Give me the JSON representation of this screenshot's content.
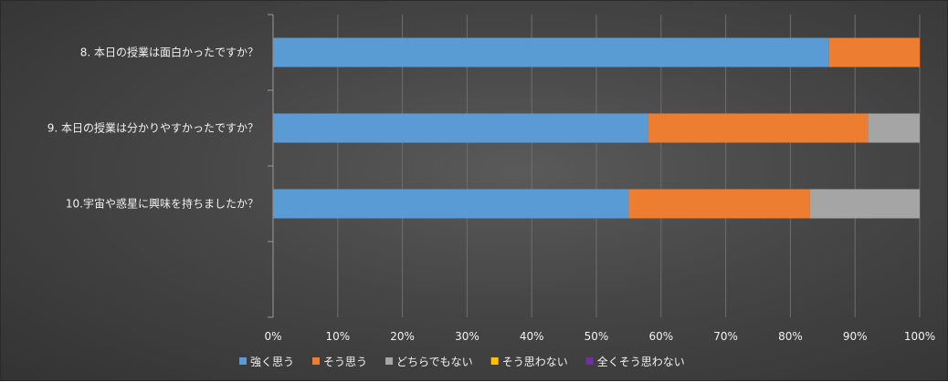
{
  "chart_data": {
    "type": "bar",
    "orientation": "horizontal",
    "stacked": "percent",
    "categories": [
      "8. 本日の授業は面白かったですか？",
      "9. 本日の授業は分かりやすかったですか？",
      "10.宇宙や惑星に興味を持ちましたか？",
      ""
    ],
    "series": [
      {
        "name": "強く思う",
        "color": "#5b9bd5",
        "values": [
          86,
          58,
          55,
          0
        ]
      },
      {
        "name": "そう思う",
        "color": "#ed7d31",
        "values": [
          14,
          34,
          28,
          0
        ]
      },
      {
        "name": "どちらでもない",
        "color": "#a5a5a5",
        "values": [
          0,
          8,
          17,
          0
        ]
      },
      {
        "name": "そう思わない",
        "color": "#ffc000",
        "values": [
          0,
          0,
          0,
          0
        ]
      },
      {
        "name": "全くそう思わない",
        "color": "#7030a0",
        "values": [
          0,
          0,
          0,
          0
        ]
      }
    ],
    "x_ticks": [
      "0%",
      "10%",
      "20%",
      "30%",
      "40%",
      "50%",
      "60%",
      "70%",
      "80%",
      "90%",
      "100%"
    ],
    "xlim": [
      0,
      100
    ],
    "grid": true,
    "legend": "bottom",
    "title": "",
    "xlabel": "",
    "ylabel": ""
  }
}
